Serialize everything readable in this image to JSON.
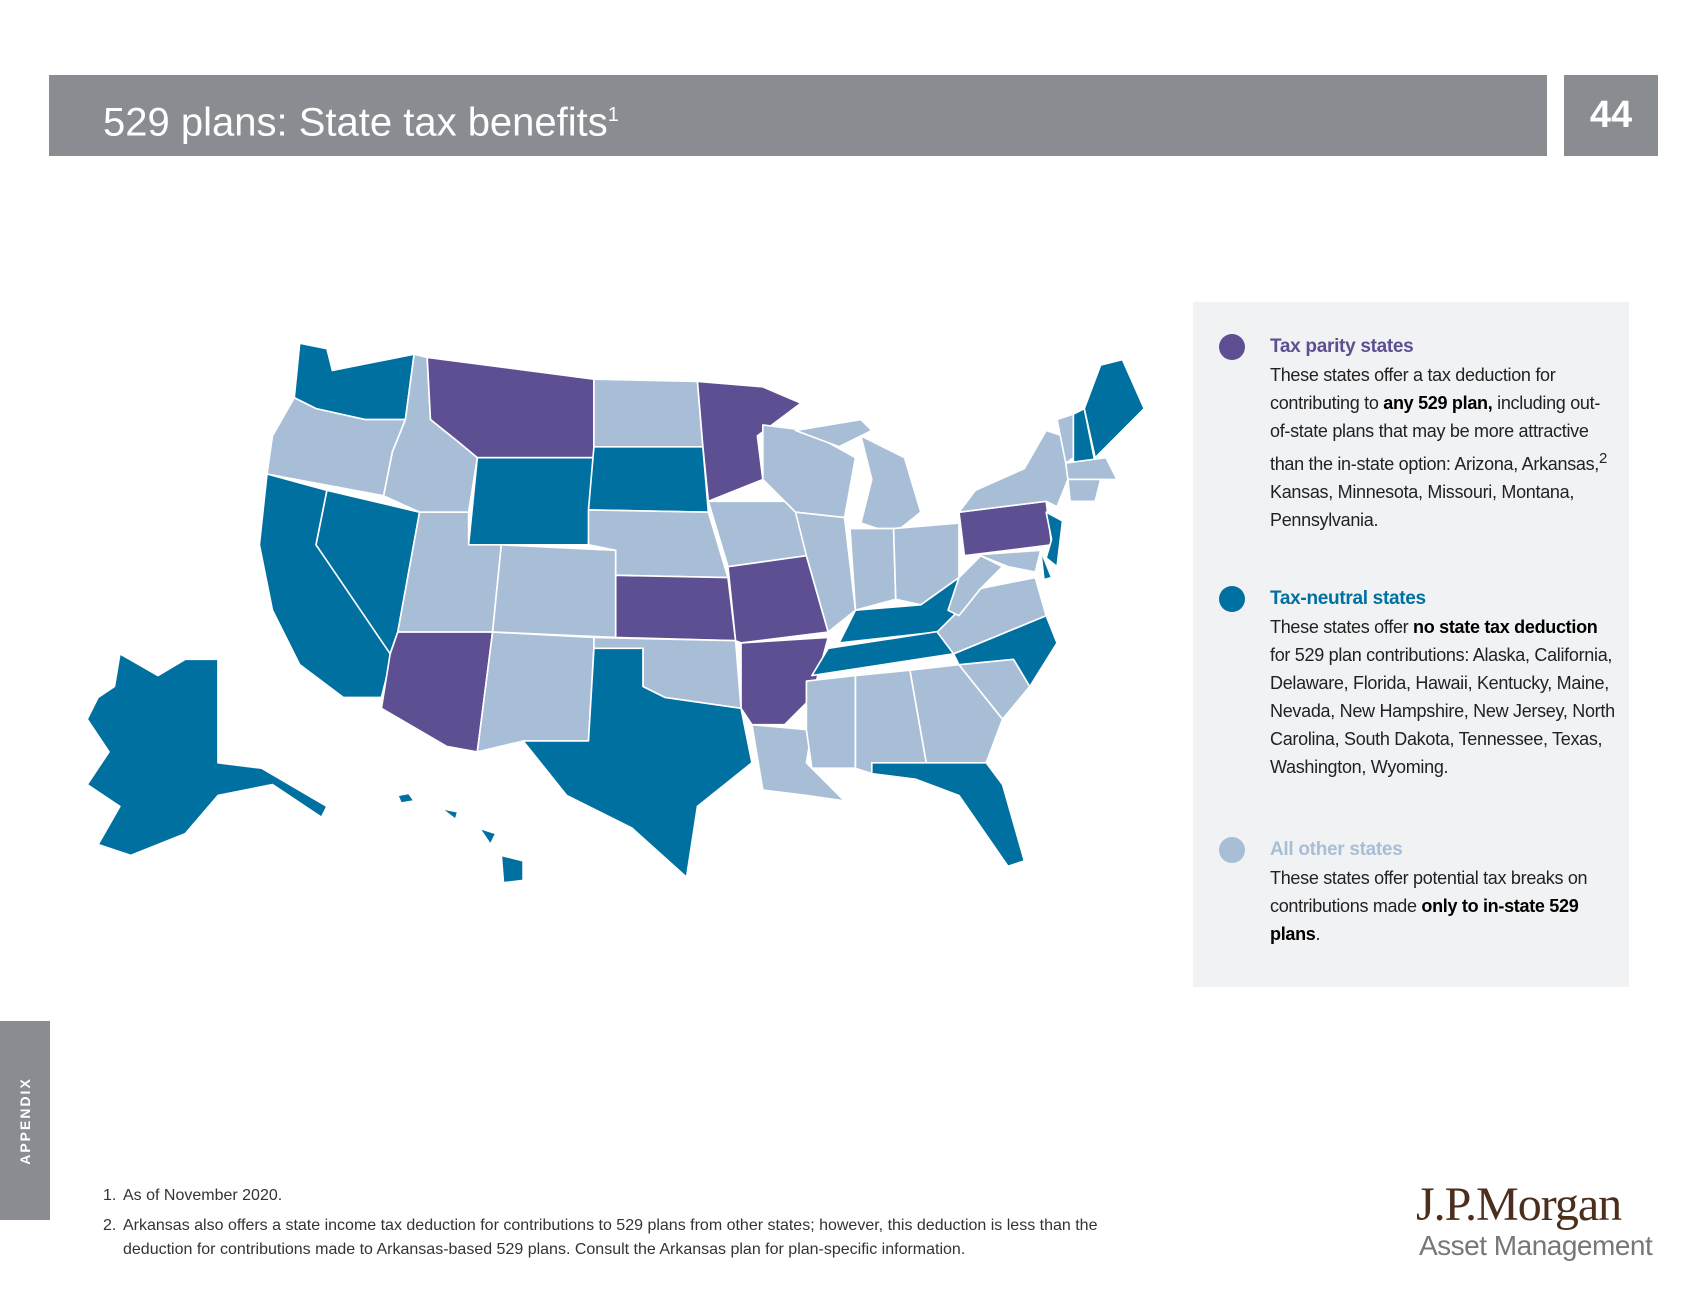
{
  "header": {
    "title": "529 plans: State tax benefits",
    "title_sup": "1",
    "page_number": "44"
  },
  "legend": {
    "items": [
      {
        "title": "Tax parity states",
        "color": "#5e4f92",
        "body": [
          {
            "text": "These states offer a tax deduction for contributing to ",
            "bold": false
          },
          {
            "text": "any 529 plan,",
            "bold": true
          },
          {
            "text": " including out-of-state plans that may be more attractive than the in-state option: Arizona, Arkansas,",
            "bold": false
          },
          {
            "text": "2",
            "sup": true
          },
          {
            "text": " Kansas, Minnesota, Missouri, Montana, Pennsylvania.",
            "bold": false
          }
        ]
      },
      {
        "title": "Tax-neutral states",
        "color": "#0070a0",
        "body": [
          {
            "text": "These states offer ",
            "bold": false
          },
          {
            "text": "no state tax deduction",
            "bold": true
          },
          {
            "text": " for 529 plan contributions: Alaska, California, Delaware, Florida, Hawaii, Kentucky, Maine, Nevada, New Hampshire, New Jersey, North Carolina, South Dakota, Tennessee, Texas, Washington, Wyoming.",
            "bold": false
          }
        ]
      },
      {
        "title": "All other states",
        "color": "#a8bed6",
        "body": [
          {
            "text": "These states offer potential tax breaks on contributions made ",
            "bold": false
          },
          {
            "text": "only to in-state 529 plans",
            "bold": true
          },
          {
            "text": ".",
            "bold": false
          }
        ]
      }
    ]
  },
  "side_label": "APPENDIX",
  "footnotes": [
    {
      "number": "1.",
      "text": "As of November 2020."
    },
    {
      "number": "2.",
      "text": "Arkansas also offers a state income tax deduction for contributions to 529 plans from other states; however, this deduction is less than the deduction for contributions made to Arkansas-based 529 plans. Consult the Arkansas plan for plan-specific information."
    }
  ],
  "logo": {
    "name": "J.P.Morgan",
    "subtitle": "Asset Management"
  }
}
